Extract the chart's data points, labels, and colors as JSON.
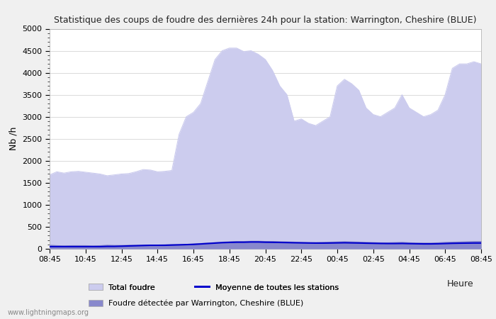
{
  "title": "Statistique des coups de foudre des dernières 24h pour la station: Warrington, Cheshire (BLUE)",
  "ylabel": "Nb /h",
  "xlabel": "Heure",
  "xlabels": [
    "08:45",
    "10:45",
    "12:45",
    "14:45",
    "16:45",
    "18:45",
    "20:45",
    "22:45",
    "00:45",
    "02:45",
    "04:45",
    "06:45",
    "08:45"
  ],
  "ylim": [
    0,
    5000
  ],
  "yticks": [
    0,
    500,
    1000,
    1500,
    2000,
    2500,
    3000,
    3500,
    4000,
    4500,
    5000
  ],
  "background_color": "#f0f0f0",
  "plot_background": "#ffffff",
  "total_foudre_color": "#ccccee",
  "detected_color": "#8888cc",
  "moyenne_color": "#0000cc",
  "watermark": "www.lightningmaps.org",
  "legend_total": "Total foudre",
  "legend_detected": "Foudre détectée par Warrington, Cheshire (BLUE)",
  "legend_moyenne": "Moyenne de toutes les stations",
  "total_foudre_values": [
    1680,
    1750,
    1720,
    1750,
    1760,
    1740,
    1720,
    1700,
    1660,
    1680,
    1700,
    1710,
    1750,
    1800,
    1790,
    1750,
    1760,
    1780,
    2600,
    3000,
    3100,
    3300,
    3800,
    4300,
    4500,
    4560,
    4560,
    4480,
    4500,
    4420,
    4300,
    4050,
    3700,
    3500,
    2900,
    2950,
    2850,
    2800,
    2900,
    3000,
    3700,
    3850,
    3750,
    3600,
    3200,
    3050,
    3000,
    3100,
    3200,
    3500,
    3200,
    3100,
    3000,
    3050,
    3150,
    3500,
    4100,
    4200,
    4200,
    4250,
    4200
  ],
  "detected_values": [
    100,
    90,
    85,
    90,
    90,
    90,
    85,
    90,
    100,
    95,
    95,
    100,
    100,
    105,
    105,
    105,
    110,
    115,
    115,
    120,
    130,
    140,
    150,
    160,
    170,
    180,
    185,
    185,
    190,
    190,
    185,
    185,
    180,
    175,
    170,
    165,
    160,
    160,
    165,
    170,
    175,
    180,
    175,
    170,
    165,
    160,
    155,
    155,
    160,
    165,
    155,
    150,
    150,
    150,
    155,
    165,
    170,
    175,
    180,
    185,
    185
  ],
  "moyenne_values": [
    50,
    50,
    50,
    50,
    50,
    50,
    50,
    50,
    55,
    55,
    60,
    65,
    70,
    75,
    80,
    80,
    80,
    85,
    90,
    95,
    100,
    110,
    120,
    130,
    140,
    145,
    150,
    150,
    155,
    155,
    150,
    148,
    145,
    142,
    138,
    135,
    132,
    130,
    130,
    132,
    135,
    138,
    135,
    132,
    128,
    125,
    122,
    120,
    120,
    122,
    118,
    115,
    112,
    112,
    115,
    120,
    125,
    128,
    130,
    132,
    132
  ]
}
